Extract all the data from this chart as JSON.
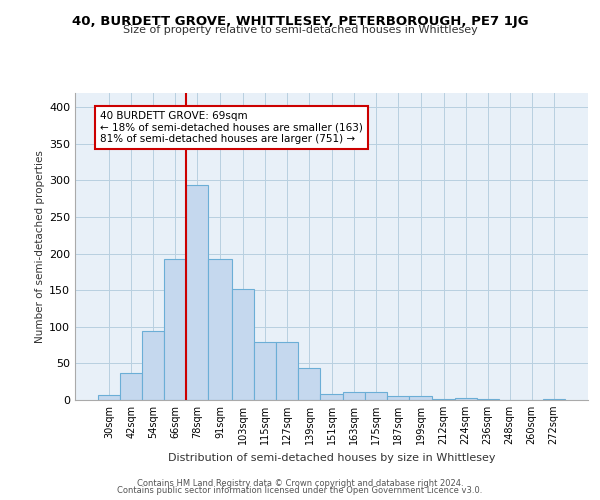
{
  "title1": "40, BURDETT GROVE, WHITTLESEY, PETERBOROUGH, PE7 1JG",
  "title2": "Size of property relative to semi-detached houses in Whittlesey",
  "xlabel": "Distribution of semi-detached houses by size in Whittlesey",
  "ylabel": "Number of semi-detached properties",
  "footer1": "Contains HM Land Registry data © Crown copyright and database right 2024.",
  "footer2": "Contains public sector information licensed under the Open Government Licence v3.0.",
  "annotation_line1": "40 BURDETT GROVE: 69sqm",
  "annotation_line2": "← 18% of semi-detached houses are smaller (163)",
  "annotation_line3": "81% of semi-detached houses are larger (751) →",
  "bar_color": "#c5d8ee",
  "bar_edge_color": "#6baed6",
  "grid_color": "#b8cfe0",
  "bg_color": "#e8f0f8",
  "vline_color": "#cc0000",
  "vline_x": 72,
  "categories": [
    "30sqm",
    "42sqm",
    "54sqm",
    "66sqm",
    "78sqm",
    "91sqm",
    "103sqm",
    "115sqm",
    "127sqm",
    "139sqm",
    "151sqm",
    "163sqm",
    "175sqm",
    "187sqm",
    "199sqm",
    "212sqm",
    "224sqm",
    "236sqm",
    "248sqm",
    "260sqm",
    "272sqm"
  ],
  "bin_edges": [
    24,
    36,
    48,
    60,
    72,
    84,
    97,
    109,
    121,
    133,
    145,
    157,
    169,
    181,
    193,
    206,
    218,
    230,
    242,
    254,
    266,
    278
  ],
  "values": [
    7,
    37,
    94,
    192,
    294,
    192,
    152,
    79,
    79,
    44,
    8,
    11,
    11,
    6,
    6,
    2,
    3,
    2,
    0,
    0,
    2
  ],
  "ylim": [
    0,
    420
  ],
  "yticks": [
    0,
    50,
    100,
    150,
    200,
    250,
    300,
    350,
    400
  ]
}
